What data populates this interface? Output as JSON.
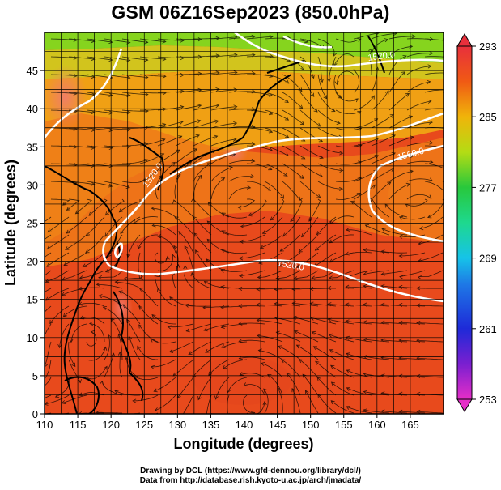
{
  "title": "GSM 06Z16Sep2023 (850.0hPa)",
  "chart_data": {
    "type": "heatmap",
    "title": "GSM 06Z16Sep2023 (850.0hPa)",
    "xlabel": "Longitude (degrees)",
    "ylabel": "Latitude  (degrees)",
    "xlim": [
      110,
      170
    ],
    "ylim": [
      0,
      50
    ],
    "x_ticks": [
      "110",
      "115",
      "120",
      "125",
      "130",
      "135",
      "140",
      "145",
      "150",
      "155",
      "160",
      "165"
    ],
    "y_ticks": [
      "0",
      "5",
      "10",
      "15",
      "20",
      "25",
      "30",
      "35",
      "40",
      "45"
    ],
    "grid": true,
    "colorbar": {
      "min": 253,
      "max": 293,
      "tick_labels": [
        "293",
        "285",
        "277",
        "269",
        "261",
        "253"
      ],
      "stops": [
        {
          "value": 253,
          "color": "#e62ec8"
        },
        {
          "value": 257,
          "color": "#7a1fd0"
        },
        {
          "value": 261,
          "color": "#1e2ad8"
        },
        {
          "value": 266,
          "color": "#1e78e6"
        },
        {
          "value": 269,
          "color": "#16c3e8"
        },
        {
          "value": 273,
          "color": "#1ed88e"
        },
        {
          "value": 277,
          "color": "#28c83c"
        },
        {
          "value": 281,
          "color": "#b4dc14"
        },
        {
          "value": 285,
          "color": "#f0b40a"
        },
        {
          "value": 289,
          "color": "#f05a14"
        },
        {
          "value": 293,
          "color": "#e8303c"
        }
      ]
    },
    "contour_labels": [
      "1520.0",
      "1560.0",
      "1520.0",
      "1520.0"
    ],
    "overlays": [
      "coastlines",
      "streamlines",
      "geopotential height contours"
    ]
  },
  "credits": {
    "line1": "Drawing by DCL (https://www.gfd-dennou.org/library/dcl/)",
    "line2": "Data from http://database.rish.kyoto-u.ac.jp/arch/jmadata/"
  }
}
